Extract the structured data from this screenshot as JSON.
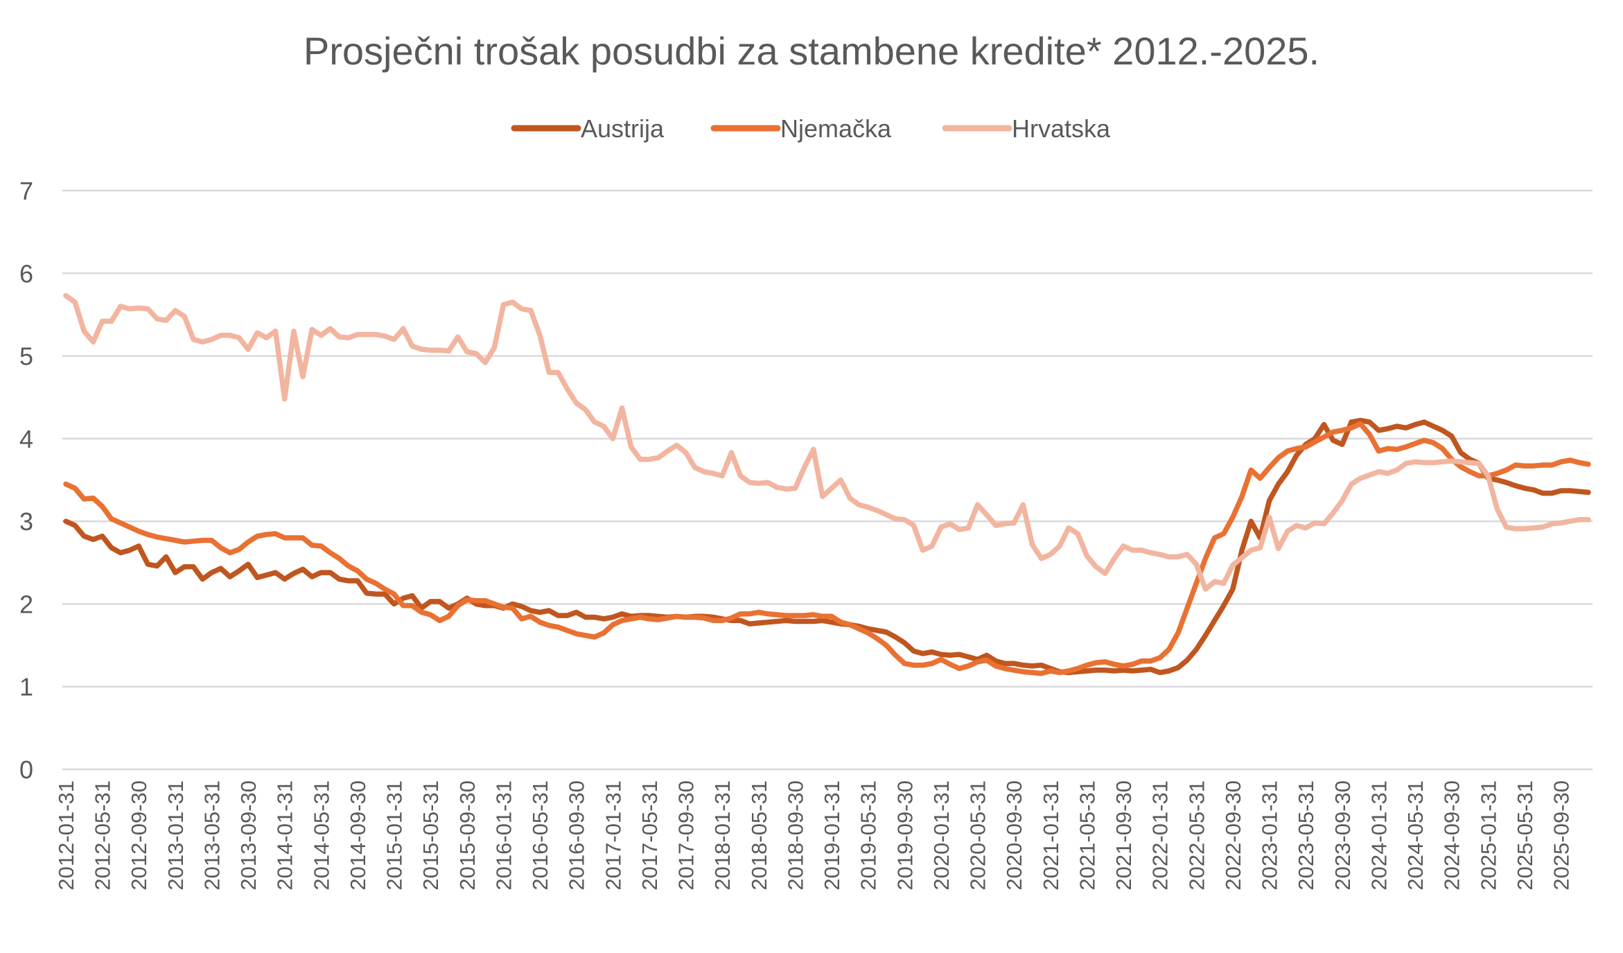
{
  "chart_data": {
    "type": "line",
    "title": "Prosječni trošak posudbi za stambene kredite* 2012.-2025.",
    "xlabel": "",
    "ylabel": "",
    "ylim": [
      0,
      7
    ],
    "yticks": [
      "0",
      "1",
      "2",
      "3",
      "4",
      "5",
      "6",
      "7"
    ],
    "grid": true,
    "legend_position": "top",
    "x_start": "2012-01",
    "x_frequency": "monthly",
    "x_tick_every_months": 4,
    "xtick_labels": [
      "2012-01-31",
      "2012-05-31",
      "2012-09-30",
      "2013-01-31",
      "2013-05-31",
      "2013-09-30",
      "2014-01-31",
      "2014-05-31",
      "2014-09-30",
      "2015-01-31",
      "2015-05-31",
      "2015-09-30",
      "2016-01-31",
      "2016-05-31",
      "2016-09-30",
      "2017-01-31",
      "2017-05-31",
      "2017-09-30",
      "2018-01-31",
      "2018-05-31",
      "2018-09-30",
      "2019-01-31",
      "2019-05-31",
      "2019-09-30",
      "2020-01-31",
      "2020-05-31",
      "2020-09-30",
      "2021-01-31",
      "2021-05-31",
      "2021-09-30",
      "2022-01-31",
      "2022-05-31",
      "2022-09-30",
      "2023-01-31",
      "2023-05-31",
      "2023-09-30",
      "2024-01-31",
      "2024-05-31",
      "2024-09-30",
      "2025-01-31",
      "2025-05-31",
      "2025-09-30"
    ],
    "series": [
      {
        "name": "Austrija",
        "color": "#c0561f",
        "values": [
          3.0,
          2.95,
          2.82,
          2.78,
          2.82,
          2.68,
          2.62,
          2.65,
          2.7,
          2.48,
          2.46,
          2.57,
          2.38,
          2.45,
          2.45,
          2.3,
          2.38,
          2.43,
          2.33,
          2.4,
          2.48,
          2.32,
          2.35,
          2.38,
          2.3,
          2.37,
          2.42,
          2.33,
          2.38,
          2.38,
          2.3,
          2.28,
          2.28,
          2.13,
          2.12,
          2.12,
          2.0,
          2.07,
          2.1,
          1.95,
          2.03,
          2.03,
          1.95,
          2.0,
          2.07,
          2.0,
          1.98,
          1.98,
          1.95,
          2.0,
          1.97,
          1.92,
          1.9,
          1.92,
          1.86,
          1.86,
          1.9,
          1.84,
          1.84,
          1.82,
          1.84,
          1.88,
          1.85,
          1.86,
          1.86,
          1.85,
          1.84,
          1.85,
          1.84,
          1.85,
          1.85,
          1.84,
          1.82,
          1.8,
          1.8,
          1.76,
          1.77,
          1.78,
          1.79,
          1.8,
          1.79,
          1.79,
          1.79,
          1.8,
          1.78,
          1.76,
          1.75,
          1.73,
          1.7,
          1.68,
          1.66,
          1.6,
          1.53,
          1.43,
          1.4,
          1.42,
          1.39,
          1.38,
          1.39,
          1.36,
          1.33,
          1.38,
          1.31,
          1.28,
          1.28,
          1.26,
          1.25,
          1.26,
          1.22,
          1.18,
          1.17,
          1.18,
          1.19,
          1.2,
          1.2,
          1.19,
          1.2,
          1.19,
          1.2,
          1.21,
          1.17,
          1.19,
          1.23,
          1.32,
          1.45,
          1.62,
          1.8,
          1.98,
          2.18,
          2.65,
          3.0,
          2.8,
          3.25,
          3.45,
          3.6,
          3.8,
          3.93,
          4.0,
          4.17,
          3.98,
          3.93,
          4.2,
          4.22,
          4.2,
          4.1,
          4.12,
          4.15,
          4.13,
          4.17,
          4.2,
          4.15,
          4.1,
          4.03,
          3.83,
          3.75,
          3.7,
          3.52,
          3.5,
          3.47,
          3.43,
          3.4,
          3.38,
          3.34,
          3.34,
          3.37,
          3.37,
          3.36,
          3.35
        ]
      },
      {
        "name": "Njemačka",
        "color": "#e97132",
        "values": [
          3.45,
          3.4,
          3.27,
          3.28,
          3.18,
          3.03,
          2.98,
          2.93,
          2.88,
          2.84,
          2.81,
          2.79,
          2.77,
          2.75,
          2.76,
          2.77,
          2.77,
          2.68,
          2.62,
          2.66,
          2.75,
          2.82,
          2.84,
          2.85,
          2.8,
          2.8,
          2.8,
          2.71,
          2.7,
          2.62,
          2.55,
          2.46,
          2.4,
          2.3,
          2.25,
          2.18,
          2.12,
          1.98,
          1.98,
          1.9,
          1.87,
          1.8,
          1.85,
          1.98,
          2.05,
          2.04,
          2.04,
          2.0,
          1.96,
          1.95,
          1.82,
          1.85,
          1.78,
          1.74,
          1.72,
          1.68,
          1.64,
          1.62,
          1.6,
          1.65,
          1.75,
          1.8,
          1.82,
          1.84,
          1.82,
          1.81,
          1.83,
          1.85,
          1.84,
          1.84,
          1.83,
          1.8,
          1.8,
          1.83,
          1.88,
          1.88,
          1.9,
          1.88,
          1.87,
          1.86,
          1.86,
          1.86,
          1.87,
          1.85,
          1.85,
          1.78,
          1.75,
          1.7,
          1.65,
          1.58,
          1.5,
          1.38,
          1.28,
          1.26,
          1.26,
          1.28,
          1.33,
          1.27,
          1.22,
          1.25,
          1.3,
          1.32,
          1.25,
          1.22,
          1.2,
          1.18,
          1.17,
          1.16,
          1.19,
          1.17,
          1.19,
          1.22,
          1.26,
          1.29,
          1.3,
          1.27,
          1.25,
          1.27,
          1.31,
          1.31,
          1.35,
          1.45,
          1.65,
          1.95,
          2.25,
          2.55,
          2.8,
          2.85,
          3.05,
          3.3,
          3.62,
          3.52,
          3.65,
          3.77,
          3.85,
          3.88,
          3.9,
          3.96,
          4.02,
          4.08,
          4.1,
          4.13,
          4.18,
          4.05,
          3.85,
          3.88,
          3.87,
          3.9,
          3.94,
          3.98,
          3.95,
          3.88,
          3.75,
          3.66,
          3.6,
          3.55,
          3.55,
          3.58,
          3.62,
          3.68,
          3.67,
          3.67,
          3.68,
          3.68,
          3.72,
          3.74,
          3.71,
          3.69
        ]
      },
      {
        "name": "Hrvatska",
        "color": "#f2b5a0",
        "values": [
          5.73,
          5.65,
          5.3,
          5.17,
          5.42,
          5.42,
          5.6,
          5.57,
          5.58,
          5.57,
          5.45,
          5.43,
          5.55,
          5.48,
          5.2,
          5.17,
          5.2,
          5.25,
          5.25,
          5.22,
          5.08,
          5.28,
          5.22,
          5.3,
          4.48,
          5.3,
          4.75,
          5.32,
          5.25,
          5.33,
          5.23,
          5.22,
          5.26,
          5.26,
          5.26,
          5.24,
          5.2,
          5.33,
          5.12,
          5.08,
          5.07,
          5.07,
          5.06,
          5.23,
          5.05,
          5.03,
          4.92,
          5.1,
          5.62,
          5.65,
          5.57,
          5.55,
          5.25,
          4.8,
          4.8,
          4.6,
          4.43,
          4.35,
          4.2,
          4.15,
          4.0,
          4.37,
          3.9,
          3.75,
          3.75,
          3.77,
          3.85,
          3.92,
          3.83,
          3.65,
          3.6,
          3.58,
          3.55,
          3.83,
          3.55,
          3.47,
          3.46,
          3.47,
          3.41,
          3.39,
          3.4,
          3.65,
          3.87,
          3.3,
          3.4,
          3.5,
          3.28,
          3.2,
          3.17,
          3.13,
          3.08,
          3.03,
          3.02,
          2.95,
          2.65,
          2.7,
          2.93,
          2.97,
          2.9,
          2.92,
          3.2,
          3.08,
          2.95,
          2.97,
          2.98,
          3.2,
          2.72,
          2.55,
          2.6,
          2.7,
          2.92,
          2.85,
          2.58,
          2.45,
          2.37,
          2.55,
          2.7,
          2.65,
          2.65,
          2.62,
          2.6,
          2.57,
          2.57,
          2.6,
          2.48,
          2.18,
          2.27,
          2.25,
          2.47,
          2.56,
          2.65,
          2.68,
          3.05,
          2.67,
          2.88,
          2.95,
          2.92,
          2.98,
          2.97,
          3.1,
          3.25,
          3.45,
          3.52,
          3.56,
          3.6,
          3.58,
          3.62,
          3.7,
          3.72,
          3.71,
          3.71,
          3.72,
          3.73,
          3.72,
          3.71,
          3.7,
          3.55,
          3.15,
          2.93,
          2.91,
          2.91,
          2.92,
          2.93,
          2.97,
          2.98,
          3.0,
          3.02,
          3.02
        ]
      }
    ]
  }
}
